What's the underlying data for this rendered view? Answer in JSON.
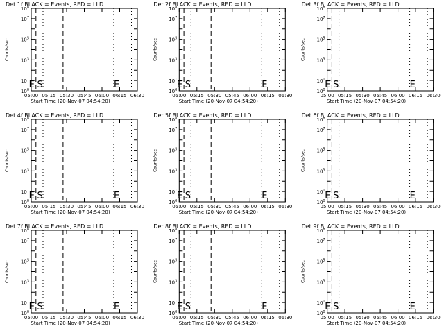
{
  "figure": {
    "background": "#ffffff",
    "foreground": "#000000"
  },
  "chart_data": [
    {
      "type": "line",
      "title": "Det 1f BLACK = Events, RED = LLD",
      "xlabel": "Start Time (20-Nov-07 04:54:20)",
      "ylabel": "Counts/sec",
      "scale_y": "log",
      "ylim": [
        1,
        100000000
      ],
      "xlim": [
        "05:00",
        "06:30"
      ],
      "x_ticks": [
        "05:00",
        "05:15",
        "05:30",
        "05:45",
        "06:00",
        "06:15",
        "06:30"
      ],
      "y_tick_exponents": [
        0,
        1,
        2,
        3,
        4,
        5,
        6,
        7,
        8
      ],
      "y_labeled_exponents": [
        0,
        1,
        3,
        5,
        7,
        8
      ],
      "dashed_lines": [
        "05:04",
        "05:27"
      ],
      "dotted_lines": [
        "05:10",
        "06:10",
        "06:25"
      ],
      "markers": [
        {
          "label": "E",
          "x": "04:58"
        },
        {
          "label": "S",
          "x": "05:05"
        },
        {
          "label": "E",
          "x": "06:10"
        }
      ],
      "series": []
    },
    {
      "type": "line",
      "title": "Det 2f BLACK = Events, RED = LLD",
      "xlabel": "Start Time (20-Nov-07 04:54:20)",
      "ylabel": "Counts/sec",
      "scale_y": "log",
      "ylim": [
        1,
        100000000
      ],
      "xlim": [
        "05:00",
        "06:30"
      ],
      "x_ticks": [
        "05:00",
        "05:15",
        "05:30",
        "05:45",
        "06:00",
        "06:15",
        "06:30"
      ],
      "y_tick_exponents": [
        0,
        1,
        2,
        3,
        4,
        5,
        6,
        7,
        8
      ],
      "y_labeled_exponents": [
        0,
        1,
        3,
        5,
        7,
        8
      ],
      "dashed_lines": [
        "05:04",
        "05:27"
      ],
      "dotted_lines": [
        "05:10",
        "06:10",
        "06:25"
      ],
      "markers": [
        {
          "label": "E",
          "x": "04:58"
        },
        {
          "label": "S",
          "x": "05:05"
        },
        {
          "label": "E",
          "x": "06:10"
        }
      ],
      "series": []
    },
    {
      "type": "line",
      "title": "Det 3f BLACK = Events, RED = LLD",
      "xlabel": "Start Time (20-Nov-07 04:54:20)",
      "ylabel": "Counts/sec",
      "scale_y": "log",
      "ylim": [
        1,
        100000000
      ],
      "xlim": [
        "05:00",
        "06:30"
      ],
      "x_ticks": [
        "05:00",
        "05:15",
        "05:30",
        "05:45",
        "06:00",
        "06:15",
        "06:30"
      ],
      "y_tick_exponents": [
        0,
        1,
        2,
        3,
        4,
        5,
        6,
        7,
        8
      ],
      "y_labeled_exponents": [
        0,
        1,
        3,
        5,
        7,
        8
      ],
      "dashed_lines": [
        "05:04",
        "05:27"
      ],
      "dotted_lines": [
        "05:10",
        "06:10",
        "06:25"
      ],
      "markers": [
        {
          "label": "E",
          "x": "04:58"
        },
        {
          "label": "S",
          "x": "05:05"
        },
        {
          "label": "E",
          "x": "06:10"
        }
      ],
      "series": []
    },
    {
      "type": "line",
      "title": "Det 4f BLACK = Events, RED = LLD",
      "xlabel": "Start Time (20-Nov-07 04:54:20)",
      "ylabel": "Counts/sec",
      "scale_y": "log",
      "ylim": [
        1,
        100000000
      ],
      "xlim": [
        "05:00",
        "06:30"
      ],
      "x_ticks": [
        "05:00",
        "05:15",
        "05:30",
        "05:45",
        "06:00",
        "06:15",
        "06:30"
      ],
      "y_tick_exponents": [
        0,
        1,
        2,
        3,
        4,
        5,
        6,
        7,
        8
      ],
      "y_labeled_exponents": [
        0,
        1,
        3,
        5,
        7,
        8
      ],
      "dashed_lines": [
        "05:04",
        "05:27"
      ],
      "dotted_lines": [
        "05:10",
        "06:10",
        "06:25"
      ],
      "markers": [
        {
          "label": "E",
          "x": "04:58"
        },
        {
          "label": "S",
          "x": "05:05"
        },
        {
          "label": "E",
          "x": "06:10"
        }
      ],
      "series": []
    },
    {
      "type": "line",
      "title": "Det 5f BLACK = Events, RED = LLD",
      "xlabel": "Start Time (20-Nov-07 04:54:20)",
      "ylabel": "Counts/sec",
      "scale_y": "log",
      "ylim": [
        1,
        100000000
      ],
      "xlim": [
        "05:00",
        "06:30"
      ],
      "x_ticks": [
        "05:00",
        "05:15",
        "05:30",
        "05:45",
        "06:00",
        "06:15",
        "06:30"
      ],
      "y_tick_exponents": [
        0,
        1,
        2,
        3,
        4,
        5,
        6,
        7,
        8
      ],
      "y_labeled_exponents": [
        0,
        1,
        3,
        5,
        7,
        8
      ],
      "dashed_lines": [
        "05:04",
        "05:27"
      ],
      "dotted_lines": [
        "05:10",
        "06:10",
        "06:25"
      ],
      "markers": [
        {
          "label": "E",
          "x": "04:58"
        },
        {
          "label": "S",
          "x": "05:05"
        },
        {
          "label": "E",
          "x": "06:10"
        }
      ],
      "series": []
    },
    {
      "type": "line",
      "title": "Det 6f BLACK = Events, RED = LLD",
      "xlabel": "Start Time (20-Nov-07 04:54:20)",
      "ylabel": "Counts/sec",
      "scale_y": "log",
      "ylim": [
        1,
        100000000
      ],
      "xlim": [
        "05:00",
        "06:30"
      ],
      "x_ticks": [
        "05:00",
        "05:15",
        "05:30",
        "05:45",
        "06:00",
        "06:15",
        "06:30"
      ],
      "y_tick_exponents": [
        0,
        1,
        2,
        3,
        4,
        5,
        6,
        7,
        8
      ],
      "y_labeled_exponents": [
        0,
        1,
        3,
        5,
        7,
        8
      ],
      "dashed_lines": [
        "05:04",
        "05:27"
      ],
      "dotted_lines": [
        "05:10",
        "06:10",
        "06:25"
      ],
      "markers": [
        {
          "label": "E",
          "x": "04:58"
        },
        {
          "label": "S",
          "x": "05:05"
        },
        {
          "label": "E",
          "x": "06:10"
        }
      ],
      "series": []
    },
    {
      "type": "line",
      "title": "Det 7f BLACK = Events, RED = LLD",
      "xlabel": "Start Time (20-Nov-07 04:54:20)",
      "ylabel": "Counts/sec",
      "scale_y": "log",
      "ylim": [
        1,
        100000000
      ],
      "xlim": [
        "05:00",
        "06:30"
      ],
      "x_ticks": [
        "05:00",
        "05:15",
        "05:30",
        "05:45",
        "06:00",
        "06:15",
        "06:30"
      ],
      "y_tick_exponents": [
        0,
        1,
        2,
        3,
        4,
        5,
        6,
        7,
        8
      ],
      "y_labeled_exponents": [
        0,
        1,
        3,
        5,
        7,
        8
      ],
      "dashed_lines": [
        "05:04",
        "05:27"
      ],
      "dotted_lines": [
        "05:10",
        "06:10",
        "06:25"
      ],
      "markers": [
        {
          "label": "E",
          "x": "04:58"
        },
        {
          "label": "S",
          "x": "05:05"
        },
        {
          "label": "E",
          "x": "06:10"
        }
      ],
      "series": []
    },
    {
      "type": "line",
      "title": "Det 8f BLACK = Events, RED = LLD",
      "xlabel": "Start Time (20-Nov-07 04:54:20)",
      "ylabel": "Counts/sec",
      "scale_y": "log",
      "ylim": [
        1,
        100000000
      ],
      "xlim": [
        "05:00",
        "06:30"
      ],
      "x_ticks": [
        "05:00",
        "05:15",
        "05:30",
        "05:45",
        "06:00",
        "06:15",
        "06:30"
      ],
      "y_tick_exponents": [
        0,
        1,
        2,
        3,
        4,
        5,
        6,
        7,
        8
      ],
      "y_labeled_exponents": [
        0,
        1,
        3,
        5,
        7,
        8
      ],
      "dashed_lines": [
        "05:04",
        "05:27"
      ],
      "dotted_lines": [
        "05:10",
        "06:10",
        "06:25"
      ],
      "markers": [
        {
          "label": "E",
          "x": "04:58"
        },
        {
          "label": "S",
          "x": "05:05"
        },
        {
          "label": "E",
          "x": "06:10"
        }
      ],
      "series": []
    },
    {
      "type": "line",
      "title": "Det 9f BLACK = Events, RED = LLD",
      "xlabel": "Start Time (20-Nov-07 04:54:20)",
      "ylabel": "Counts/sec",
      "scale_y": "log",
      "ylim": [
        1,
        100000000
      ],
      "xlim": [
        "05:00",
        "06:30"
      ],
      "x_ticks": [
        "05:00",
        "05:15",
        "05:30",
        "05:45",
        "06:00",
        "06:15",
        "06:30"
      ],
      "y_tick_exponents": [
        0,
        1,
        2,
        3,
        4,
        5,
        6,
        7,
        8
      ],
      "y_labeled_exponents": [
        0,
        1,
        3,
        5,
        7,
        8
      ],
      "dashed_lines": [
        "05:04",
        "05:27"
      ],
      "dotted_lines": [
        "05:10",
        "06:10",
        "06:25"
      ],
      "markers": [
        {
          "label": "E",
          "x": "04:58"
        },
        {
          "label": "S",
          "x": "05:05"
        },
        {
          "label": "E",
          "x": "06:10"
        }
      ],
      "series": []
    }
  ]
}
